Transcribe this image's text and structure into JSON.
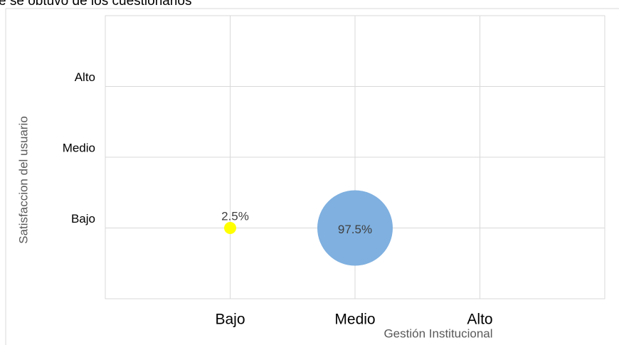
{
  "header_text": "e se obtuvo de los cuestionarios",
  "chart_data": {
    "type": "bubble",
    "x_label": "Gestión Institucional",
    "y_label": "Satisfaccion del usuario",
    "xlim": [
      0,
      4
    ],
    "ylim": [
      0,
      4
    ],
    "xticks": [
      {
        "value": 1,
        "label": "Bajo"
      },
      {
        "value": 2,
        "label": "Medio"
      },
      {
        "value": 3,
        "label": "Alto"
      }
    ],
    "yticks": [
      {
        "value": 1,
        "label": "Bajo"
      },
      {
        "value": 2,
        "label": "Medio"
      },
      {
        "value": 3,
        "label": "Alto"
      }
    ],
    "grid": true,
    "series": [
      {
        "x": [
          1,
          2
        ],
        "y": [
          1,
          1
        ],
        "sizes": [
          2.5,
          97.5
        ],
        "colors": [
          "#ffff00",
          "#7fb0e0"
        ],
        "value_labels": [
          "2.5%",
          "97.5%"
        ]
      }
    ]
  }
}
